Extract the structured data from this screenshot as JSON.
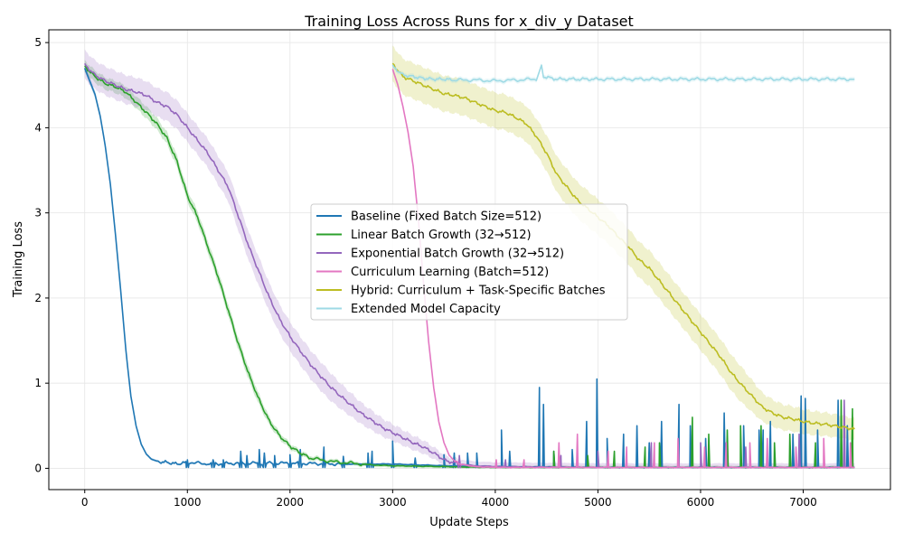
{
  "chart_data": {
    "type": "line",
    "title": "Training Loss Across Runs for x_div_y Dataset",
    "xlabel": "Update Steps",
    "ylabel": "Training Loss",
    "xlim": [
      -350,
      7850
    ],
    "ylim": [
      -0.25,
      5.15
    ],
    "xticks": [
      0,
      1000,
      2000,
      3000,
      4000,
      5000,
      6000,
      7000
    ],
    "yticks": [
      0,
      1,
      2,
      3,
      4,
      5
    ],
    "grid": true,
    "legend_position": "center",
    "series": [
      {
        "name": "Baseline (Fixed Batch Size=512)",
        "color": "#1f77b4",
        "band": 0.03,
        "points": [
          [
            0,
            4.7
          ],
          [
            50,
            4.55
          ],
          [
            100,
            4.4
          ],
          [
            150,
            4.15
          ],
          [
            200,
            3.8
          ],
          [
            250,
            3.35
          ],
          [
            300,
            2.75
          ],
          [
            350,
            2.1
          ],
          [
            400,
            1.4
          ],
          [
            450,
            0.85
          ],
          [
            500,
            0.5
          ],
          [
            550,
            0.28
          ],
          [
            600,
            0.16
          ],
          [
            650,
            0.1
          ],
          [
            700,
            0.08
          ],
          [
            800,
            0.07
          ],
          [
            900,
            0.05
          ],
          [
            1000,
            0.07
          ],
          [
            1200,
            0.05
          ],
          [
            1500,
            0.06
          ],
          [
            2000,
            0.06
          ],
          [
            2500,
            0.05
          ],
          [
            3000,
            0.05
          ],
          [
            3500,
            0.03
          ],
          [
            4000,
            0.02
          ],
          [
            5000,
            0.01
          ],
          [
            6000,
            0.01
          ],
          [
            7000,
            0.01
          ],
          [
            7500,
            0.01
          ]
        ],
        "spikes": [
          [
            1000,
            0.1
          ],
          [
            1250,
            0.1
          ],
          [
            1350,
            0.1
          ],
          [
            1520,
            0.2
          ],
          [
            1580,
            0.15
          ],
          [
            1700,
            0.22
          ],
          [
            1750,
            0.18
          ],
          [
            1850,
            0.15
          ],
          [
            2000,
            0.16
          ],
          [
            2100,
            0.22
          ],
          [
            2330,
            0.25
          ],
          [
            2520,
            0.14
          ],
          [
            2760,
            0.18
          ],
          [
            2800,
            0.2
          ],
          [
            3000,
            0.32
          ],
          [
            3220,
            0.12
          ],
          [
            3500,
            0.16
          ],
          [
            3600,
            0.18
          ],
          [
            3730,
            0.18
          ],
          [
            3820,
            0.18
          ],
          [
            4060,
            0.45
          ],
          [
            4140,
            0.2
          ],
          [
            4430,
            0.95
          ],
          [
            4470,
            0.75
          ],
          [
            4570,
            0.2
          ],
          [
            4750,
            0.22
          ],
          [
            4890,
            0.55
          ],
          [
            4990,
            1.05
          ],
          [
            5090,
            0.35
          ],
          [
            5250,
            0.4
          ],
          [
            5380,
            0.5
          ],
          [
            5500,
            0.3
          ],
          [
            5620,
            0.55
          ],
          [
            5790,
            0.75
          ],
          [
            5900,
            0.5
          ],
          [
            6050,
            0.35
          ],
          [
            6230,
            0.65
          ],
          [
            6420,
            0.5
          ],
          [
            6570,
            0.45
          ],
          [
            6610,
            0.45
          ],
          [
            6680,
            0.55
          ],
          [
            6900,
            0.4
          ],
          [
            6980,
            0.85
          ],
          [
            7020,
            0.82
          ],
          [
            7140,
            0.45
          ],
          [
            7340,
            0.8
          ],
          [
            7430,
            0.5
          ]
        ]
      },
      {
        "name": "Linear Batch Growth (32→512)",
        "color": "#2ca02c",
        "band": 0.05,
        "points": [
          [
            0,
            4.72
          ],
          [
            100,
            4.6
          ],
          [
            200,
            4.52
          ],
          [
            300,
            4.48
          ],
          [
            400,
            4.42
          ],
          [
            500,
            4.3
          ],
          [
            600,
            4.18
          ],
          [
            700,
            4.05
          ],
          [
            800,
            3.88
          ],
          [
            900,
            3.6
          ],
          [
            1000,
            3.2
          ],
          [
            1100,
            2.95
          ],
          [
            1200,
            2.6
          ],
          [
            1300,
            2.25
          ],
          [
            1400,
            1.85
          ],
          [
            1500,
            1.45
          ],
          [
            1600,
            1.1
          ],
          [
            1700,
            0.8
          ],
          [
            1800,
            0.55
          ],
          [
            1900,
            0.38
          ],
          [
            2000,
            0.26
          ],
          [
            2100,
            0.18
          ],
          [
            2200,
            0.12
          ],
          [
            2400,
            0.08
          ],
          [
            2600,
            0.06
          ],
          [
            2800,
            0.04
          ],
          [
            3000,
            0.03
          ],
          [
            3500,
            0.02
          ],
          [
            4000,
            0.01
          ],
          [
            5000,
            0.01
          ],
          [
            6000,
            0.01
          ],
          [
            7000,
            0.01
          ],
          [
            7500,
            0.01
          ]
        ],
        "spikes": [
          [
            4570,
            0.2
          ],
          [
            4900,
            0.15
          ],
          [
            5160,
            0.2
          ],
          [
            5460,
            0.25
          ],
          [
            5600,
            0.3
          ],
          [
            5920,
            0.6
          ],
          [
            6080,
            0.4
          ],
          [
            6260,
            0.45
          ],
          [
            6390,
            0.5
          ],
          [
            6590,
            0.5
          ],
          [
            6720,
            0.3
          ],
          [
            6870,
            0.4
          ],
          [
            7120,
            0.3
          ],
          [
            7370,
            0.8
          ],
          [
            7480,
            0.7
          ]
        ]
      },
      {
        "name": "Exponential Batch Growth (32→512)",
        "color": "#9467bd",
        "band": 0.12,
        "points": [
          [
            0,
            4.74
          ],
          [
            100,
            4.62
          ],
          [
            200,
            4.55
          ],
          [
            300,
            4.5
          ],
          [
            400,
            4.45
          ],
          [
            500,
            4.42
          ],
          [
            600,
            4.38
          ],
          [
            700,
            4.3
          ],
          [
            800,
            4.25
          ],
          [
            900,
            4.15
          ],
          [
            1000,
            4.0
          ],
          [
            1100,
            3.85
          ],
          [
            1200,
            3.7
          ],
          [
            1300,
            3.5
          ],
          [
            1400,
            3.3
          ],
          [
            1500,
            2.95
          ],
          [
            1600,
            2.6
          ],
          [
            1700,
            2.3
          ],
          [
            1800,
            2.0
          ],
          [
            1900,
            1.75
          ],
          [
            2000,
            1.55
          ],
          [
            2100,
            1.38
          ],
          [
            2200,
            1.22
          ],
          [
            2300,
            1.08
          ],
          [
            2400,
            0.95
          ],
          [
            2500,
            0.84
          ],
          [
            2600,
            0.74
          ],
          [
            2700,
            0.64
          ],
          [
            2800,
            0.56
          ],
          [
            2900,
            0.48
          ],
          [
            3000,
            0.42
          ],
          [
            3100,
            0.36
          ],
          [
            3200,
            0.3
          ],
          [
            3300,
            0.25
          ],
          [
            3400,
            0.18
          ],
          [
            3500,
            0.1
          ],
          [
            3600,
            0.06
          ],
          [
            3800,
            0.03
          ],
          [
            4000,
            0.02
          ],
          [
            5000,
            0.01
          ],
          [
            6000,
            0.01
          ],
          [
            7000,
            0.01
          ],
          [
            7500,
            0.01
          ]
        ],
        "spikes": [
          [
            3650,
            0.15
          ],
          [
            4100,
            0.1
          ],
          [
            4640,
            0.15
          ],
          [
            5000,
            0.2
          ],
          [
            5520,
            0.3
          ],
          [
            6000,
            0.3
          ],
          [
            6440,
            0.25
          ],
          [
            6960,
            0.4
          ],
          [
            7400,
            0.8
          ]
        ]
      },
      {
        "name": "Curriculum Learning (Batch=512)",
        "color": "#e377c2",
        "band": 0.02,
        "points": [
          [
            3000,
            4.68
          ],
          [
            3050,
            4.5
          ],
          [
            3100,
            4.25
          ],
          [
            3150,
            3.95
          ],
          [
            3200,
            3.55
          ],
          [
            3250,
            2.95
          ],
          [
            3300,
            2.2
          ],
          [
            3350,
            1.5
          ],
          [
            3400,
            0.95
          ],
          [
            3450,
            0.55
          ],
          [
            3500,
            0.3
          ],
          [
            3550,
            0.15
          ],
          [
            3600,
            0.08
          ],
          [
            3700,
            0.04
          ],
          [
            3800,
            0.02
          ],
          [
            4000,
            0.01
          ],
          [
            5000,
            0.01
          ],
          [
            6000,
            0.01
          ],
          [
            7000,
            0.01
          ],
          [
            7500,
            0.01
          ]
        ],
        "spikes": [
          [
            4010,
            0.1
          ],
          [
            4280,
            0.1
          ],
          [
            4620,
            0.3
          ],
          [
            4800,
            0.4
          ],
          [
            5100,
            0.2
          ],
          [
            5280,
            0.25
          ],
          [
            5550,
            0.3
          ],
          [
            5780,
            0.35
          ],
          [
            6040,
            0.25
          ],
          [
            6250,
            0.3
          ],
          [
            6480,
            0.3
          ],
          [
            6650,
            0.35
          ],
          [
            6930,
            0.25
          ],
          [
            7200,
            0.35
          ],
          [
            7460,
            0.3
          ]
        ]
      },
      {
        "name": "Hybrid: Curriculum + Task-Specific Batches",
        "color": "#bcbd22",
        "band": 0.15,
        "points": [
          [
            3000,
            4.75
          ],
          [
            3100,
            4.6
          ],
          [
            3200,
            4.55
          ],
          [
            3300,
            4.5
          ],
          [
            3400,
            4.45
          ],
          [
            3500,
            4.4
          ],
          [
            3600,
            4.38
          ],
          [
            3700,
            4.35
          ],
          [
            3800,
            4.3
          ],
          [
            3900,
            4.25
          ],
          [
            4000,
            4.2
          ],
          [
            4100,
            4.18
          ],
          [
            4200,
            4.12
          ],
          [
            4300,
            4.05
          ],
          [
            4400,
            3.9
          ],
          [
            4500,
            3.7
          ],
          [
            4600,
            3.45
          ],
          [
            4700,
            3.3
          ],
          [
            4800,
            3.15
          ],
          [
            4900,
            3.05
          ],
          [
            5000,
            2.95
          ],
          [
            5100,
            2.85
          ],
          [
            5200,
            2.72
          ],
          [
            5300,
            2.6
          ],
          [
            5400,
            2.45
          ],
          [
            5500,
            2.35
          ],
          [
            5600,
            2.2
          ],
          [
            5700,
            2.05
          ],
          [
            5800,
            1.9
          ],
          [
            5900,
            1.75
          ],
          [
            6000,
            1.6
          ],
          [
            6100,
            1.45
          ],
          [
            6200,
            1.3
          ],
          [
            6300,
            1.12
          ],
          [
            6400,
            0.98
          ],
          [
            6500,
            0.85
          ],
          [
            6600,
            0.72
          ],
          [
            6700,
            0.65
          ],
          [
            6800,
            0.6
          ],
          [
            6900,
            0.58
          ],
          [
            7000,
            0.55
          ],
          [
            7100,
            0.53
          ],
          [
            7200,
            0.52
          ],
          [
            7300,
            0.5
          ],
          [
            7400,
            0.48
          ],
          [
            7500,
            0.46
          ]
        ],
        "spikes": []
      },
      {
        "name": "Extended Model Capacity",
        "color": "#9edae5",
        "band": 0.02,
        "points": [
          [
            3000,
            4.72
          ],
          [
            3100,
            4.62
          ],
          [
            3200,
            4.6
          ],
          [
            3300,
            4.58
          ],
          [
            3400,
            4.57
          ],
          [
            3500,
            4.57
          ],
          [
            3600,
            4.56
          ],
          [
            3800,
            4.56
          ],
          [
            4000,
            4.55
          ],
          [
            4200,
            4.56
          ],
          [
            4400,
            4.57
          ],
          [
            4450,
            4.75
          ],
          [
            4470,
            4.6
          ],
          [
            4600,
            4.57
          ],
          [
            5000,
            4.57
          ],
          [
            5500,
            4.57
          ],
          [
            6000,
            4.57
          ],
          [
            6500,
            4.57
          ],
          [
            7000,
            4.57
          ],
          [
            7500,
            4.57
          ]
        ],
        "spikes": []
      }
    ]
  }
}
